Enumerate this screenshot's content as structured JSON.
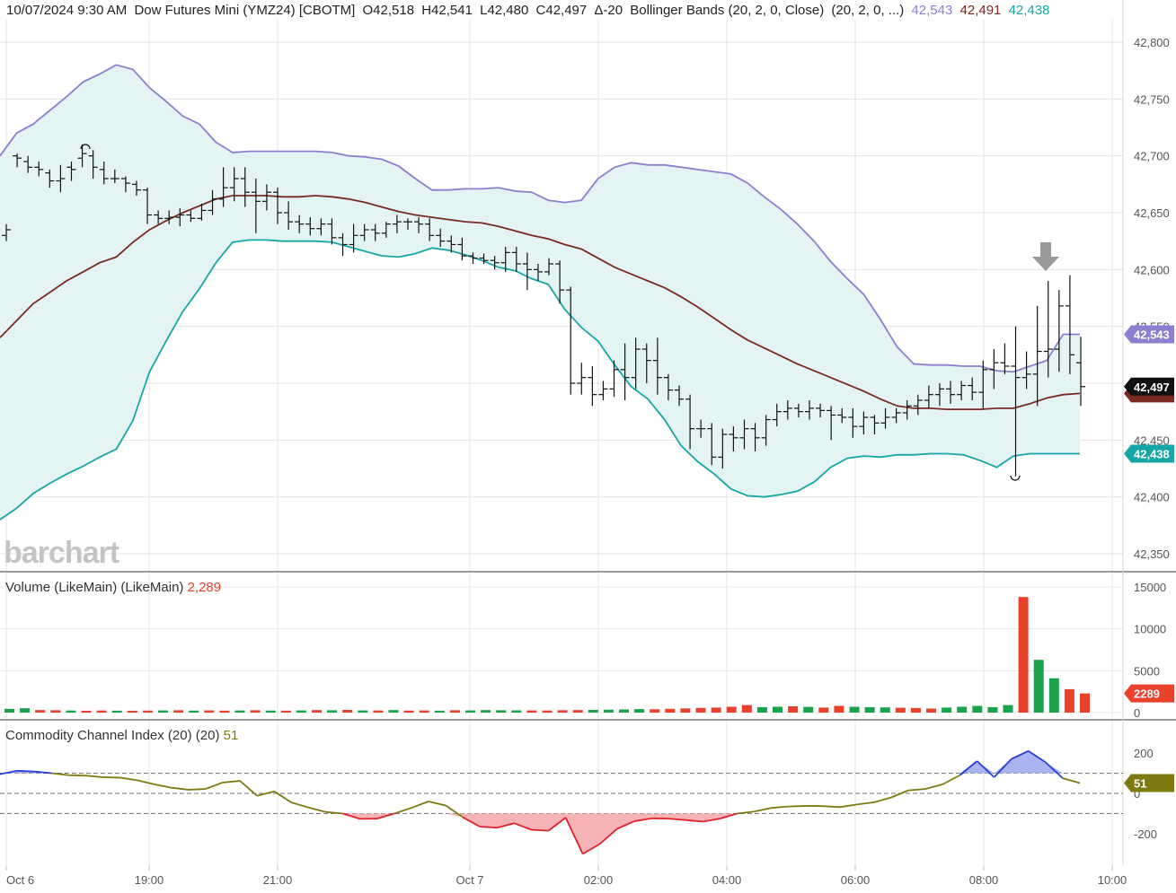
{
  "header": {
    "datetime": "10/07/2024 9:30 AM",
    "symbol": "Dow Futures Mini (YMZ24) [CBOTM]",
    "open": "O42,518",
    "high": "H42,541",
    "low": "L42,480",
    "close": "C42,497",
    "change": "Δ-20",
    "indicator": "Bollinger Bands (20, 2, 0, Close)",
    "indicator_params": "(20, 2, 0, ...)",
    "upper_val": "42,543",
    "mid_val": "42,491",
    "lower_val": "42,438",
    "upper_color": "#8c7fd0",
    "mid_color": "#7a2a22",
    "lower_color": "#17a6a6"
  },
  "watermark": "barchart",
  "price_tags": {
    "upper": "42,543",
    "last": "42,497",
    "lower": "42,438"
  },
  "volume_panel": {
    "title": "Volume (LikeMain)",
    "params": "(LikeMain)",
    "value": "2,289",
    "tag": "2289",
    "up_color": "#1aa34a",
    "down_color": "#e8412c"
  },
  "cci_panel": {
    "title": "Commodity Channel Index (20)",
    "params": "(20)",
    "value": "51",
    "tag": "51",
    "line_color": "#7d7a12",
    "over_color": "#2a3fd6",
    "under_color": "#e0202a"
  },
  "x_ticks": [
    "Oct 6",
    "19:00",
    "21:00",
    "Oct 7",
    "02:00",
    "04:00",
    "06:00",
    "08:00",
    "10:00"
  ],
  "chart_data": [
    {
      "type": "ohlc",
      "ylim": [
        42350,
        42800
      ],
      "yticks": [
        "42,350",
        "42,400",
        "42,450",
        "42,500",
        "42,550",
        "42,600",
        "42,650",
        "42,700",
        "42,750",
        "42,800"
      ],
      "bars": [
        [
          42630,
          42625,
          42640,
          42635
        ],
        [
          42700,
          42690,
          42702,
          42698
        ],
        [
          42695,
          42685,
          42700,
          42690
        ],
        [
          42690,
          42682,
          42695,
          42688
        ],
        [
          42685,
          42672,
          42688,
          42678
        ],
        [
          42678,
          42668,
          42692,
          42680
        ],
        [
          42690,
          42678,
          42695,
          42688
        ],
        [
          42698,
          42690,
          42710,
          42702
        ],
        [
          42700,
          42680,
          42705,
          42690
        ],
        [
          42688,
          42675,
          42695,
          42680
        ],
        [
          42680,
          42676,
          42688,
          42680
        ],
        [
          42680,
          42668,
          42682,
          42676
        ],
        [
          42675,
          42665,
          42678,
          42670
        ],
        [
          42670,
          42640,
          42672,
          42648
        ],
        [
          42648,
          42640,
          42652,
          42645
        ],
        [
          42645,
          42640,
          42652,
          42646
        ],
        [
          42646,
          42638,
          42654,
          42648
        ],
        [
          42648,
          42642,
          42652,
          42645
        ],
        [
          42645,
          42643,
          42658,
          42652
        ],
        [
          42652,
          42648,
          42670,
          42662
        ],
        [
          42662,
          42655,
          42690,
          42672
        ],
        [
          42672,
          42660,
          42690,
          42680
        ],
        [
          42680,
          42655,
          42690,
          42668
        ],
        [
          42668,
          42632,
          42680,
          42660
        ],
        [
          42660,
          42652,
          42675,
          42668
        ],
        [
          42668,
          42640,
          42672,
          42650
        ],
        [
          42650,
          42635,
          42660,
          42642
        ],
        [
          42642,
          42632,
          42648,
          42640
        ],
        [
          42640,
          42630,
          42646,
          42636
        ],
        [
          42636,
          42630,
          42645,
          42640
        ],
        [
          42640,
          42622,
          42645,
          42628
        ],
        [
          42628,
          42612,
          42632,
          42622
        ],
        [
          42622,
          42615,
          42640,
          42630
        ],
        [
          42630,
          42625,
          42640,
          42635
        ],
        [
          42635,
          42625,
          42640,
          42632
        ],
        [
          42632,
          42628,
          42642,
          42640
        ],
        [
          42640,
          42632,
          42648,
          42642
        ],
        [
          42642,
          42635,
          42645,
          42642
        ],
        [
          42642,
          42632,
          42646,
          42640
        ],
        [
          42640,
          42625,
          42645,
          42630
        ],
        [
          42630,
          42620,
          42636,
          42625
        ],
        [
          42625,
          42615,
          42630,
          42622
        ],
        [
          42622,
          42608,
          42628,
          42612
        ],
        [
          42612,
          42605,
          42615,
          42610
        ],
        [
          42610,
          42605,
          42614,
          42608
        ],
        [
          42608,
          42600,
          42612,
          42606
        ],
        [
          42606,
          42598,
          42620,
          42615
        ],
        [
          42615,
          42598,
          42620,
          42605
        ],
        [
          42605,
          42582,
          42615,
          42600
        ],
        [
          42600,
          42590,
          42605,
          42598
        ],
        [
          42598,
          42595,
          42610,
          42605
        ],
        [
          42605,
          42570,
          42608,
          42582
        ],
        [
          42582,
          42490,
          42585,
          42500
        ],
        [
          42500,
          42490,
          42518,
          42505
        ],
        [
          42505,
          42480,
          42515,
          42490
        ],
        [
          42490,
          42485,
          42502,
          42495
        ],
        [
          42495,
          42488,
          42520,
          42512
        ],
        [
          42512,
          42485,
          42535,
          42505
        ],
        [
          42505,
          42495,
          42540,
          42530
        ],
        [
          42530,
          42500,
          42535,
          42520
        ],
        [
          42520,
          42490,
          42540,
          42505
        ],
        [
          42505,
          42485,
          42508,
          42494
        ],
        [
          42494,
          42480,
          42498,
          42486
        ],
        [
          42486,
          42442,
          42490,
          42460
        ],
        [
          42460,
          42452,
          42468,
          42460
        ],
        [
          42460,
          42428,
          42465,
          42435
        ],
        [
          42435,
          42425,
          42460,
          42455
        ],
        [
          42455,
          42440,
          42462,
          42452
        ],
        [
          42452,
          42442,
          42468,
          42460
        ],
        [
          42460,
          42440,
          42465,
          42452
        ],
        [
          42452,
          42445,
          42472,
          42468
        ],
        [
          42468,
          42462,
          42482,
          42475
        ],
        [
          42475,
          42468,
          42485,
          42478
        ],
        [
          42478,
          42470,
          42482,
          42475
        ],
        [
          42475,
          42468,
          42485,
          42478
        ],
        [
          42478,
          42470,
          42482,
          42476
        ],
        [
          42476,
          42450,
          42480,
          42472
        ],
        [
          42472,
          42465,
          42478,
          42470
        ],
        [
          42470,
          42452,
          42478,
          42462
        ],
        [
          42462,
          42455,
          42475,
          42470
        ],
        [
          42470,
          42455,
          42472,
          42465
        ],
        [
          42465,
          42460,
          42478,
          42470
        ],
        [
          42470,
          42465,
          42478,
          42474
        ],
        [
          42474,
          42468,
          42485,
          42480
        ],
        [
          42480,
          42472,
          42490,
          42485
        ],
        [
          42485,
          42478,
          42498,
          42490
        ],
        [
          42490,
          42480,
          42500,
          42495
        ],
        [
          42495,
          42482,
          42502,
          42490
        ],
        [
          42490,
          42485,
          42502,
          42498
        ],
        [
          42498,
          42485,
          42505,
          42492
        ],
        [
          42492,
          42478,
          42520,
          42512
        ],
        [
          42512,
          42495,
          42530,
          42518
        ],
        [
          42518,
          42508,
          42535,
          42515
        ],
        [
          42515,
          42418,
          42550,
          42505
        ],
        [
          42505,
          42495,
          42528,
          42508
        ],
        [
          42508,
          42480,
          42568,
          42528
        ],
        [
          42528,
          42505,
          42590,
          42530
        ],
        [
          42530,
          42510,
          42582,
          42568
        ],
        [
          42568,
          42508,
          42595,
          42525
        ],
        [
          42518,
          42480,
          42541,
          42497
        ]
      ],
      "upper_band": [
        42700,
        42720,
        42728,
        42740,
        42752,
        42765,
        42772,
        42780,
        42776,
        42760,
        42748,
        42735,
        42728,
        42712,
        42703,
        42704,
        42704,
        42704,
        42704,
        42704,
        42703,
        42700,
        42699,
        42697,
        42691,
        42680,
        42670,
        42670,
        42671,
        42671,
        42672,
        42669,
        42668,
        42661,
        42659,
        42661,
        42680,
        42690,
        42694,
        42692,
        42692,
        42690,
        42688,
        42686,
        42684,
        42676,
        42664,
        42653,
        42640,
        42625,
        42607,
        42592,
        42578,
        42556,
        42532,
        42517,
        42516,
        42516,
        42515,
        42515,
        42511,
        42510,
        42515,
        42520,
        42543,
        42543
      ],
      "middle_band": [
        42540,
        42555,
        42570,
        42580,
        42590,
        42598,
        42606,
        42611,
        42624,
        42635,
        42643,
        42650,
        42656,
        42662,
        42665,
        42665,
        42665,
        42664,
        42664,
        42665,
        42664,
        42662,
        42659,
        42655,
        42651,
        42648,
        42646,
        42644,
        42642,
        42641,
        42638,
        42634,
        42630,
        42627,
        42622,
        42618,
        42610,
        42602,
        42596,
        42590,
        42584,
        42576,
        42567,
        42557,
        42547,
        42538,
        42531,
        42524,
        42517,
        42511,
        42505,
        42499,
        42493,
        42486,
        42480,
        42478,
        42478,
        42477,
        42477,
        42477,
        42478,
        42478,
        42482,
        42487,
        42490,
        42491
      ],
      "lower_band": [
        42380,
        42390,
        42403,
        42412,
        42420,
        42427,
        42435,
        42442,
        42467,
        42510,
        42537,
        42563,
        42583,
        42606,
        42624,
        42626,
        42626,
        42625,
        42625,
        42625,
        42624,
        42620,
        42616,
        42612,
        42611,
        42614,
        42619,
        42617,
        42613,
        42608,
        42602,
        42599,
        42592,
        42587,
        42565,
        42549,
        42537,
        42516,
        42497,
        42486,
        42468,
        42445,
        42431,
        42420,
        42407,
        42401,
        42400,
        42402,
        42405,
        42413,
        42426,
        42434,
        42436,
        42435,
        42437,
        42437,
        42438,
        42438,
        42437,
        42432,
        42426,
        42436,
        42438,
        42438,
        42438,
        42438
      ],
      "annotations": [
        "high marker at 42,706",
        "low marker at 42,418",
        "down arrow at 42,605"
      ]
    },
    {
      "type": "bar",
      "name": "Volume",
      "ylim": [
        0,
        15000
      ],
      "yticks": [
        "0",
        "5000",
        "10000",
        "15000"
      ],
      "values": [
        450,
        520,
        300,
        280,
        250,
        220,
        250,
        230,
        220,
        240,
        260,
        280,
        240,
        260,
        230,
        250,
        280,
        240,
        230,
        260,
        300,
        280,
        320,
        260,
        250,
        300,
        240,
        260,
        230,
        280,
        260,
        300,
        280,
        270,
        260,
        250,
        280,
        300,
        320,
        350,
        380,
        420,
        400,
        450,
        500,
        560,
        600,
        700,
        900,
        650,
        700,
        750,
        680,
        600,
        800,
        700,
        650,
        620,
        580,
        550,
        480,
        600,
        700,
        800,
        650,
        900,
        13800,
        6300,
        4100,
        2800,
        2289
      ],
      "directions": [
        "u",
        "u",
        "d",
        "d",
        "u",
        "d",
        "d",
        "u",
        "d",
        "d",
        "u",
        "d",
        "u",
        "d",
        "d",
        "u",
        "d",
        "u",
        "d",
        "u",
        "d",
        "u",
        "d",
        "u",
        "d",
        "u",
        "d",
        "d",
        "u",
        "d",
        "u",
        "u",
        "u",
        "u",
        "d",
        "d",
        "d",
        "d",
        "u",
        "u",
        "u",
        "u",
        "d",
        "d",
        "d",
        "d",
        "d",
        "d",
        "d",
        "u",
        "u",
        "d",
        "u",
        "d",
        "d",
        "u",
        "u",
        "u",
        "d",
        "d",
        "d",
        "u",
        "u",
        "u",
        "u",
        "u",
        "d",
        "u",
        "u",
        "d",
        "d"
      ]
    },
    {
      "type": "line",
      "name": "Commodity Channel Index",
      "ylim": [
        -280,
        290
      ],
      "yticks": [
        "200",
        "0",
        "-200"
      ],
      "levels": [
        100,
        -100
      ],
      "values": [
        95,
        112,
        108,
        100,
        90,
        88,
        80,
        78,
        65,
        45,
        28,
        18,
        22,
        54,
        62,
        -12,
        10,
        -45,
        -70,
        -92,
        -100,
        -126,
        -125,
        -100,
        -72,
        -40,
        -60,
        -118,
        -165,
        -170,
        -148,
        -180,
        -185,
        -120,
        -300,
        -250,
        -176,
        -138,
        -124,
        -125,
        -132,
        -140,
        -125,
        -100,
        -90,
        -72,
        -65,
        -62,
        -63,
        -68,
        -55,
        -44,
        -20,
        15,
        22,
        45,
        90,
        160,
        80,
        170,
        210,
        154,
        75,
        51
      ]
    }
  ]
}
